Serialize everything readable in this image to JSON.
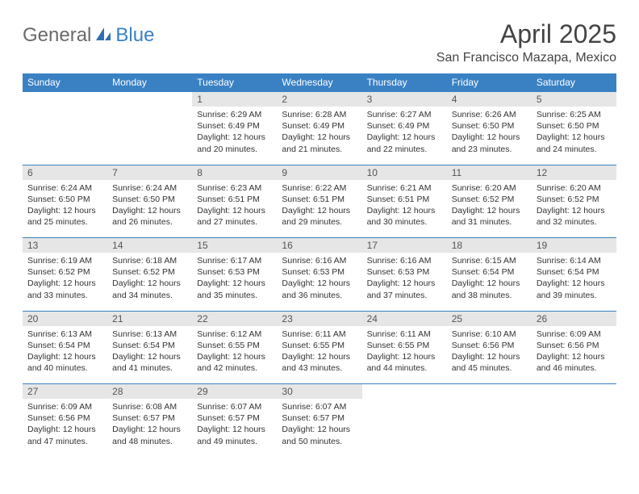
{
  "brand": {
    "part1": "General",
    "part2": "Blue"
  },
  "title": "April 2025",
  "location": "San Francisco Mazapa, Mexico",
  "colors": {
    "header_bg": "#3a81c4",
    "header_fg": "#ffffff",
    "daynum_bg": "#e6e6e6",
    "border": "#3a81c4",
    "text": "#333333",
    "brand_gray": "#6a6a6a",
    "brand_blue": "#3a81c4"
  },
  "weekdays": [
    "Sunday",
    "Monday",
    "Tuesday",
    "Wednesday",
    "Thursday",
    "Friday",
    "Saturday"
  ],
  "weeks": [
    [
      null,
      null,
      {
        "n": "1",
        "sr": "6:29 AM",
        "ss": "6:49 PM",
        "dl": "12 hours and 20 minutes."
      },
      {
        "n": "2",
        "sr": "6:28 AM",
        "ss": "6:49 PM",
        "dl": "12 hours and 21 minutes."
      },
      {
        "n": "3",
        "sr": "6:27 AM",
        "ss": "6:49 PM",
        "dl": "12 hours and 22 minutes."
      },
      {
        "n": "4",
        "sr": "6:26 AM",
        "ss": "6:50 PM",
        "dl": "12 hours and 23 minutes."
      },
      {
        "n": "5",
        "sr": "6:25 AM",
        "ss": "6:50 PM",
        "dl": "12 hours and 24 minutes."
      }
    ],
    [
      {
        "n": "6",
        "sr": "6:24 AM",
        "ss": "6:50 PM",
        "dl": "12 hours and 25 minutes."
      },
      {
        "n": "7",
        "sr": "6:24 AM",
        "ss": "6:50 PM",
        "dl": "12 hours and 26 minutes."
      },
      {
        "n": "8",
        "sr": "6:23 AM",
        "ss": "6:51 PM",
        "dl": "12 hours and 27 minutes."
      },
      {
        "n": "9",
        "sr": "6:22 AM",
        "ss": "6:51 PM",
        "dl": "12 hours and 29 minutes."
      },
      {
        "n": "10",
        "sr": "6:21 AM",
        "ss": "6:51 PM",
        "dl": "12 hours and 30 minutes."
      },
      {
        "n": "11",
        "sr": "6:20 AM",
        "ss": "6:52 PM",
        "dl": "12 hours and 31 minutes."
      },
      {
        "n": "12",
        "sr": "6:20 AM",
        "ss": "6:52 PM",
        "dl": "12 hours and 32 minutes."
      }
    ],
    [
      {
        "n": "13",
        "sr": "6:19 AM",
        "ss": "6:52 PM",
        "dl": "12 hours and 33 minutes."
      },
      {
        "n": "14",
        "sr": "6:18 AM",
        "ss": "6:52 PM",
        "dl": "12 hours and 34 minutes."
      },
      {
        "n": "15",
        "sr": "6:17 AM",
        "ss": "6:53 PM",
        "dl": "12 hours and 35 minutes."
      },
      {
        "n": "16",
        "sr": "6:16 AM",
        "ss": "6:53 PM",
        "dl": "12 hours and 36 minutes."
      },
      {
        "n": "17",
        "sr": "6:16 AM",
        "ss": "6:53 PM",
        "dl": "12 hours and 37 minutes."
      },
      {
        "n": "18",
        "sr": "6:15 AM",
        "ss": "6:54 PM",
        "dl": "12 hours and 38 minutes."
      },
      {
        "n": "19",
        "sr": "6:14 AM",
        "ss": "6:54 PM",
        "dl": "12 hours and 39 minutes."
      }
    ],
    [
      {
        "n": "20",
        "sr": "6:13 AM",
        "ss": "6:54 PM",
        "dl": "12 hours and 40 minutes."
      },
      {
        "n": "21",
        "sr": "6:13 AM",
        "ss": "6:54 PM",
        "dl": "12 hours and 41 minutes."
      },
      {
        "n": "22",
        "sr": "6:12 AM",
        "ss": "6:55 PM",
        "dl": "12 hours and 42 minutes."
      },
      {
        "n": "23",
        "sr": "6:11 AM",
        "ss": "6:55 PM",
        "dl": "12 hours and 43 minutes."
      },
      {
        "n": "24",
        "sr": "6:11 AM",
        "ss": "6:55 PM",
        "dl": "12 hours and 44 minutes."
      },
      {
        "n": "25",
        "sr": "6:10 AM",
        "ss": "6:56 PM",
        "dl": "12 hours and 45 minutes."
      },
      {
        "n": "26",
        "sr": "6:09 AM",
        "ss": "6:56 PM",
        "dl": "12 hours and 46 minutes."
      }
    ],
    [
      {
        "n": "27",
        "sr": "6:09 AM",
        "ss": "6:56 PM",
        "dl": "12 hours and 47 minutes."
      },
      {
        "n": "28",
        "sr": "6:08 AM",
        "ss": "6:57 PM",
        "dl": "12 hours and 48 minutes."
      },
      {
        "n": "29",
        "sr": "6:07 AM",
        "ss": "6:57 PM",
        "dl": "12 hours and 49 minutes."
      },
      {
        "n": "30",
        "sr": "6:07 AM",
        "ss": "6:57 PM",
        "dl": "12 hours and 50 minutes."
      },
      null,
      null,
      null
    ]
  ],
  "labels": {
    "sunrise": "Sunrise: ",
    "sunset": "Sunset: ",
    "daylight": "Daylight: "
  }
}
